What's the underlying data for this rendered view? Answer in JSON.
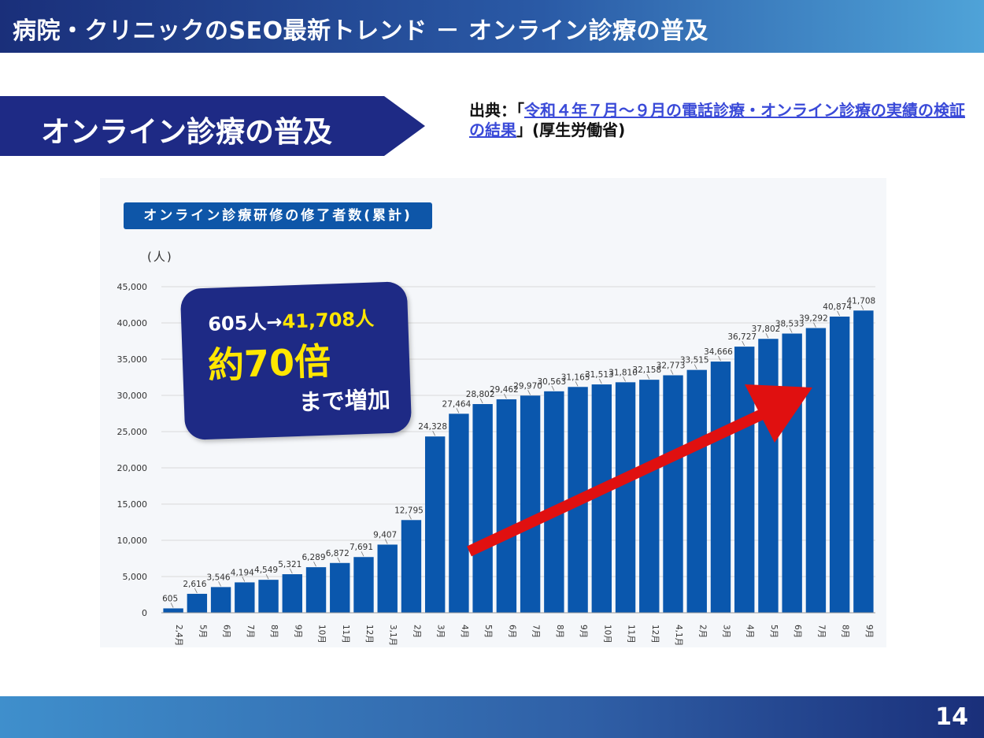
{
  "header": {
    "title": "病院・クリニックのSEO最新トレンド － オンライン診療の普及"
  },
  "section": {
    "title": "オンライン診療の普及"
  },
  "source": {
    "prefix": "出典：「",
    "link_text": "令和４年７月～９月の電話診療・オンライン診療の実績の検証の結果",
    "suffix": "」(厚生労働省)"
  },
  "chart_header": {
    "label": "オンライン診療研修の修了者数(累計)",
    "unit": "(人)"
  },
  "callout": {
    "from": "605人→",
    "to": "41,708人",
    "multiplier": "約70倍",
    "tail": "まで増加"
  },
  "colors": {
    "bar": "#0a57ad",
    "arrow": "#e01010",
    "callout_bg": "#1e2a85",
    "highlight": "#ffe600"
  },
  "page": {
    "number": "14"
  },
  "chart_data": {
    "type": "bar",
    "title": "オンライン診療研修の修了者数(累計)",
    "ylabel": "(人)",
    "ylim": [
      0,
      45000
    ],
    "yticks": [
      "0",
      "5,000",
      "10,000",
      "15,000",
      "20,000",
      "25,000",
      "30,000",
      "35,000",
      "40,000",
      "45,000"
    ],
    "categories": [
      "2,4月",
      "5月",
      "6月",
      "7月",
      "8月",
      "9月",
      "10月",
      "11月",
      "12月",
      "3,1月",
      "2月",
      "3月",
      "4月",
      "5月",
      "6月",
      "7月",
      "8月",
      "9月",
      "10月",
      "11月",
      "12月",
      "4,1月",
      "2月",
      "3月",
      "4月",
      "5月",
      "6月",
      "7月",
      "8月",
      "9月"
    ],
    "values": [
      605,
      2616,
      3546,
      4194,
      4549,
      5321,
      6289,
      6872,
      7691,
      9407,
      12795,
      24328,
      27464,
      28802,
      29462,
      29970,
      30563,
      31165,
      31513,
      31810,
      32158,
      32773,
      33515,
      34666,
      36727,
      37802,
      38533,
      39292,
      40874,
      41708
    ],
    "labels": [
      "605",
      "2,616",
      "3,546",
      "4,194",
      "4,549",
      "5,321",
      "6,289",
      "6,872",
      "7,691",
      "9,407",
      "12,795",
      "24,328",
      "27,464",
      "28,802",
      "29,462",
      "29,970",
      "30,563",
      "31,165",
      "31,513",
      "31,810",
      "32,158",
      "32,773",
      "33,515",
      "34,666",
      "36,727",
      "37,802",
      "38,533",
      "39,292",
      "40,874",
      "41,708"
    ]
  }
}
